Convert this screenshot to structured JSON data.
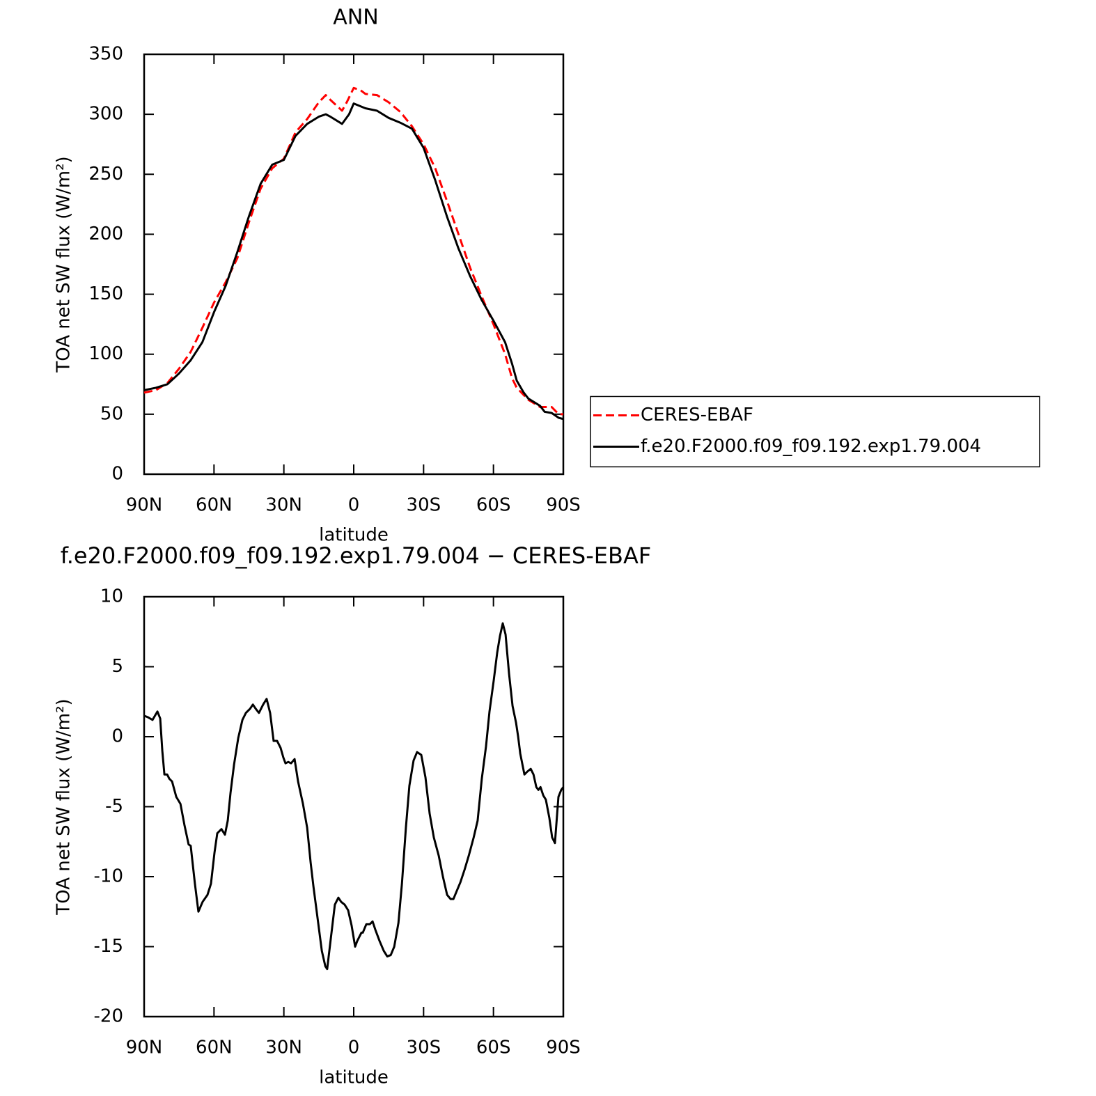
{
  "chart_data": [
    {
      "type": "line",
      "title": "ANN",
      "xlabel": "latitude",
      "ylabel": "TOA net SW flux (W/m²)",
      "xlim": [
        90,
        -90
      ],
      "xticks": [
        {
          "value": 90,
          "label": "90N"
        },
        {
          "value": 60,
          "label": "60N"
        },
        {
          "value": 30,
          "label": "30N"
        },
        0,
        {
          "value": -30,
          "label": "30S"
        },
        {
          "value": -60,
          "label": "60S"
        },
        {
          "value": -90,
          "label": "90S"
        }
      ],
      "ylim": [
        0,
        350
      ],
      "yticks": [
        0,
        50,
        100,
        150,
        200,
        250,
        300,
        350
      ],
      "legend": "right",
      "series": [
        {
          "name": "CERES-EBAF",
          "color": "#ff0000",
          "style": "dashed",
          "x": [
            90,
            85,
            80,
            75,
            70,
            65,
            60,
            55,
            50,
            45,
            40,
            35,
            30,
            25,
            20,
            15,
            12,
            10,
            5,
            3,
            0,
            -3,
            -5,
            -10,
            -15,
            -20,
            -25,
            -30,
            -35,
            -40,
            -45,
            -50,
            -55,
            -60,
            -65,
            -68,
            -70,
            -73,
            -75,
            -80,
            -85,
            -88,
            -90
          ],
          "values": [
            68,
            70,
            76,
            88,
            102,
            122,
            143,
            160,
            180,
            210,
            238,
            255,
            263,
            285,
            296,
            310,
            316,
            312,
            303,
            310,
            322,
            320,
            317,
            316,
            310,
            302,
            290,
            275,
            255,
            228,
            200,
            172,
            148,
            125,
            100,
            80,
            72,
            66,
            62,
            56,
            56,
            50,
            50
          ]
        },
        {
          "name": "f.e20.F2000.f09_f09.192.exp1.79.004",
          "color": "#000000",
          "style": "solid",
          "x": [
            90,
            85,
            80,
            75,
            70,
            65,
            60,
            55,
            50,
            45,
            40,
            35,
            30,
            25,
            20,
            15,
            12,
            10,
            5,
            2,
            0,
            -5,
            -10,
            -15,
            -20,
            -25,
            -30,
            -35,
            -40,
            -45,
            -50,
            -55,
            -60,
            -65,
            -68,
            -70,
            -73,
            -75,
            -80,
            -82,
            -85,
            -88,
            -90
          ],
          "values": [
            70,
            72,
            75,
            84,
            95,
            110,
            135,
            157,
            185,
            215,
            242,
            258,
            262,
            282,
            292,
            298,
            300,
            298,
            292,
            300,
            309,
            305,
            303,
            297,
            293,
            288,
            272,
            245,
            215,
            188,
            165,
            145,
            128,
            110,
            92,
            78,
            68,
            63,
            57,
            52,
            51,
            47,
            46
          ]
        }
      ]
    },
    {
      "type": "line",
      "title": "f.e20.F2000.f09_f09.192.exp1.79.004 − CERES-EBAF",
      "xlabel": "latitude",
      "ylabel": "TOA net SW flux (W/m²)",
      "xlim": [
        90,
        -90
      ],
      "xticks": [
        {
          "value": 90,
          "label": "90N"
        },
        {
          "value": 60,
          "label": "60N"
        },
        {
          "value": 30,
          "label": "30N"
        },
        0,
        {
          "value": -30,
          "label": "30S"
        },
        {
          "value": -60,
          "label": "60S"
        },
        {
          "value": -90,
          "label": "90S"
        }
      ],
      "ylim": [
        -20,
        10
      ],
      "yticks": [
        -20,
        -15,
        -10,
        -5,
        0,
        5,
        10
      ],
      "series": [
        {
          "color": "#000000",
          "style": "solid",
          "x": [
            90,
            88.5,
            86.4,
            84.3,
            83.1,
            82.2,
            81.3,
            80.1,
            79.2,
            78,
            76.2,
            74.4,
            72.7,
            70.9,
            70,
            68.2,
            66.7,
            64.9,
            62.8,
            61.3,
            59.8,
            58.6,
            56.8,
            55.3,
            54.1,
            52.9,
            51.4,
            49.6,
            47.8,
            46.3,
            44.5,
            43.3,
            42.1,
            40.7,
            38.9,
            37.4,
            35.9,
            34.4,
            32.9,
            31.4,
            30.2,
            29.3,
            28.1,
            26.9,
            25.4,
            23.9,
            21.8,
            20,
            18.5,
            17.3,
            15.5,
            13.7,
            12.2,
            11.4,
            9.9,
            8.1,
            6.6,
            5.4,
            3.9,
            2.4,
            0.9,
            -0.6,
            -1.5,
            -3.3,
            -3.9,
            -5.4,
            -6.9,
            -8.1,
            -9.3,
            -11.1,
            -12.9,
            -14.4,
            -15.9,
            -17.4,
            -19.2,
            -20.7,
            -22.4,
            -23.9,
            -25.7,
            -27.2,
            -29,
            -30.8,
            -32.6,
            -34.4,
            -36.5,
            -38.3,
            -40.1,
            -41.6,
            -42.8,
            -44.3,
            -45.8,
            -47.6,
            -49.4,
            -51.5,
            -53.2,
            -55,
            -56.8,
            -58.3,
            -60.1,
            -61.6,
            -62.8,
            -64,
            -65.2,
            -66.7,
            -68.2,
            -69.7,
            -70.6,
            -71.5,
            -73.3,
            -74.5,
            -76,
            -77.2,
            -78.4,
            -79.3,
            -80.2,
            -81.4,
            -82.5,
            -84,
            -85.2,
            -86.4,
            -87.9,
            -89.1,
            -90
          ],
          "values": [
            1.5,
            1.4,
            1.2,
            1.8,
            1.3,
            -1,
            -2.7,
            -2.7,
            -3,
            -3.2,
            -4.3,
            -4.8,
            -6.3,
            -7.7,
            -7.8,
            -10.5,
            -12.5,
            -11.8,
            -11.3,
            -10.5,
            -8.3,
            -6.9,
            -6.6,
            -7,
            -6,
            -4,
            -2,
            -0.1,
            1.2,
            1.7,
            2,
            2.3,
            2,
            1.7,
            2.3,
            2.7,
            1.7,
            -0.3,
            -0.3,
            -0.8,
            -1.5,
            -1.9,
            -1.8,
            -1.9,
            -1.6,
            -3.2,
            -4.8,
            -6.5,
            -9,
            -10.7,
            -13,
            -15.3,
            -16.4,
            -16.6,
            -14.5,
            -12,
            -11.5,
            -11.8,
            -12,
            -12.4,
            -13.5,
            -15,
            -14.6,
            -14,
            -14,
            -13.4,
            -13.4,
            -13.2,
            -13.8,
            -14.6,
            -15.3,
            -15.7,
            -15.6,
            -15,
            -13.3,
            -10.5,
            -6.5,
            -3.5,
            -1.7,
            -1.1,
            -1.3,
            -2.9,
            -5.5,
            -7.2,
            -8.5,
            -10,
            -11.3,
            -11.6,
            -11.6,
            -11,
            -10.4,
            -9.5,
            -8.5,
            -7.2,
            -6,
            -3,
            -0.7,
            1.8,
            4,
            6,
            7.2,
            8.1,
            7.3,
            4.5,
            2.2,
            1,
            0,
            -1.2,
            -2.7,
            -2.5,
            -2.3,
            -2.7,
            -3.6,
            -3.8,
            -3.6,
            -4.2,
            -4.5,
            -5.8,
            -7.2,
            -7.6,
            -4.3,
            -3.8,
            -3.6
          ]
        }
      ]
    }
  ]
}
